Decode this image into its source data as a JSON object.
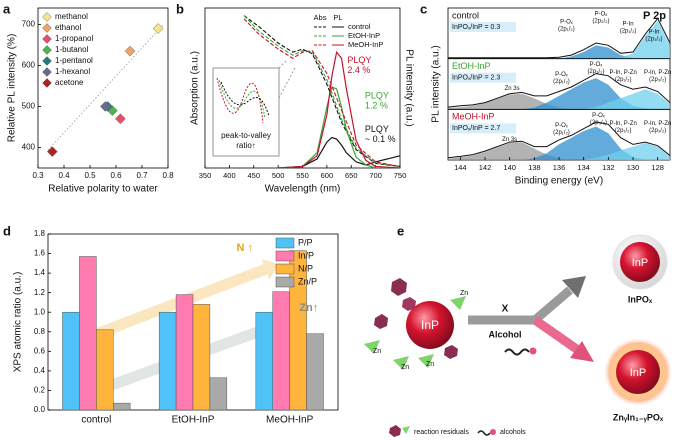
{
  "chart_data": [
    {
      "type": "scatter",
      "panel_label": "a",
      "xlabel": "Relative polarity to water",
      "ylabel": "Relative PL intensity (%)",
      "xlim": [
        0.3,
        0.8
      ],
      "xticks": [
        0.3,
        0.4,
        0.5,
        0.6,
        0.7,
        0.8
      ],
      "ylim": [
        350,
        740
      ],
      "yticks": [
        400,
        500,
        600,
        700
      ],
      "series": [
        {
          "name": "methanol",
          "color": "#f6e48e",
          "x": [
            0.762
          ],
          "values": [
            690
          ]
        },
        {
          "name": "ethanol",
          "color": "#f2a466",
          "x": [
            0.654
          ],
          "values": [
            635
          ]
        },
        {
          "name": "1-propanol",
          "color": "#e2506a",
          "x": [
            0.617
          ],
          "values": [
            470
          ]
        },
        {
          "name": "1-butanol",
          "color": "#4fb34f",
          "x": [
            0.586
          ],
          "values": [
            490
          ]
        },
        {
          "name": "1-pentanol",
          "color": "#1f7f80",
          "x": [
            0.568
          ],
          "values": [
            500
          ]
        },
        {
          "name": "1-hexanol",
          "color": "#6a6a8c",
          "x": [
            0.559
          ],
          "values": [
            500
          ]
        },
        {
          "name": "acetone",
          "color": "#b0231f",
          "x": [
            0.355
          ],
          "values": [
            390
          ]
        }
      ]
    },
    {
      "type": "spectra",
      "panel_label": "b",
      "xlabel": "Wavelength (nm)",
      "ylabel": "Absorption (a.u.)",
      "y2label": "PL intensity (a.u.)",
      "xlim": [
        350,
        750
      ],
      "xticks": [
        350,
        400,
        450,
        500,
        550,
        600,
        650,
        700,
        750
      ],
      "ylim": [
        0,
        1.05
      ],
      "legend_headers": [
        "Abs",
        "PL"
      ],
      "abs_x": [
        430,
        460,
        500,
        530,
        550,
        570,
        600,
        630,
        660,
        700,
        750
      ],
      "pl_x": [
        500,
        550,
        580,
        600,
        610,
        620,
        630,
        640,
        660,
        680,
        700,
        750
      ],
      "series": [
        {
          "name": "control",
          "color": "#111111",
          "abs": [
            1.0,
            0.93,
            0.82,
            0.76,
            0.78,
            0.75,
            0.55,
            0.3,
            0.12,
            0.03,
            0.01
          ],
          "pl": [
            0,
            0.01,
            0.06,
            0.17,
            0.2,
            0.19,
            0.15,
            0.1,
            0.04,
            0.02,
            0.04,
            0.08
          ]
        },
        {
          "name": "EtOH-InP",
          "color": "#3aa635",
          "abs": [
            1.0,
            0.9,
            0.8,
            0.74,
            0.77,
            0.76,
            0.58,
            0.32,
            0.13,
            0.03,
            0.01
          ],
          "pl": [
            0,
            0.01,
            0.1,
            0.4,
            0.53,
            0.52,
            0.4,
            0.25,
            0.07,
            0.02,
            0,
            0
          ]
        },
        {
          "name": "MeOH-InP",
          "color": "#c8102e",
          "abs": [
            0.98,
            0.88,
            0.78,
            0.72,
            0.76,
            0.77,
            0.62,
            0.38,
            0.15,
            0.04,
            0.01
          ],
          "pl": [
            0,
            0.01,
            0.08,
            0.35,
            0.6,
            0.76,
            0.72,
            0.52,
            0.18,
            0.05,
            0.01,
            0
          ]
        }
      ],
      "annotations": [
        {
          "lines": [
            "PLQY",
            "2.4 %"
          ],
          "color": "#c8102e"
        },
        {
          "lines": [
            "PLQY",
            "1.2 %"
          ],
          "color": "#3aa635"
        },
        {
          "lines": [
            "PLQY",
            "~ 0.1 %"
          ],
          "color": "#111111"
        }
      ],
      "inset": [
        "peak-to-valley",
        "ratio↑"
      ]
    },
    {
      "type": "xps",
      "panel_label": "c",
      "title": "P 2p",
      "xlabel": "Binding energy (eV)",
      "ylabel": "PL intensity (a.u.)",
      "xlim": [
        145,
        127
      ],
      "xticks": [
        144,
        142,
        140,
        138,
        136,
        134,
        132,
        130,
        128
      ],
      "ylim": [
        0,
        1
      ],
      "x": [
        145,
        144,
        143,
        142,
        141,
        140,
        139,
        138,
        137,
        136,
        135,
        134,
        133,
        132,
        131,
        130,
        129,
        128,
        127
      ],
      "panels": [
        {
          "label": "control",
          "label_color": "#111111",
          "ratio": "InPOₓ/InP = 0.3",
          "envelope": [
            0.02,
            0.02,
            0.02,
            0.02,
            0.02,
            0.02,
            0.02,
            0.02,
            0.02,
            0.03,
            0.08,
            0.2,
            0.35,
            0.3,
            0.12,
            0.15,
            0.55,
            0.9,
            0.35
          ],
          "components": [
            {
              "color": "#2f8fcf",
              "values": [
                0,
                0,
                0,
                0,
                0,
                0,
                0,
                0,
                0,
                0,
                0.05,
                0.15,
                0.3,
                0.25,
                0.08,
                0.02,
                0,
                0,
                0
              ]
            },
            {
              "color": "#6fd0ee",
              "values": [
                0,
                0,
                0,
                0,
                0,
                0,
                0,
                0,
                0,
                0,
                0,
                0,
                0,
                0,
                0.02,
                0.12,
                0.5,
                0.85,
                0.3
              ]
            }
          ],
          "annotations": [
            [
              "P-Oₓ",
              "(2p₁/₂)"
            ],
            [
              "P-Oₓ",
              "(2p₃/₂)"
            ],
            [
              "P-In",
              "(2p₁/₂)"
            ],
            [
              "P-In",
              "(2p₃/₂)"
            ]
          ]
        },
        {
          "label": "EtOH-InP",
          "label_color": "#3aa635",
          "ratio": "InPOₓ/InP = 2.3",
          "envelope": [
            0.05,
            0.08,
            0.1,
            0.15,
            0.25,
            0.35,
            0.38,
            0.3,
            0.3,
            0.4,
            0.5,
            0.65,
            0.8,
            0.75,
            0.55,
            0.45,
            0.5,
            0.4,
            0.15
          ],
          "components": [
            {
              "color": "#9a9a9a",
              "values": [
                0.03,
                0.05,
                0.08,
                0.14,
                0.24,
                0.33,
                0.35,
                0.25,
                0.12,
                0.04,
                0,
                0,
                0,
                0,
                0,
                0,
                0,
                0,
                0
              ]
            },
            {
              "color": "#2f8fcf",
              "values": [
                0,
                0,
                0,
                0,
                0,
                0,
                0,
                0.04,
                0.15,
                0.3,
                0.45,
                0.6,
                0.7,
                0.55,
                0.25,
                0.08,
                0.02,
                0,
                0
              ]
            },
            {
              "color": "#6fd0ee",
              "values": [
                0,
                0,
                0,
                0,
                0,
                0,
                0,
                0,
                0,
                0,
                0,
                0,
                0.05,
                0.15,
                0.25,
                0.35,
                0.45,
                0.35,
                0.12
              ]
            }
          ],
          "annotations": [
            [
              "Zn 3s"
            ],
            [
              "P-Oₓ",
              "(2p₁/₂)"
            ],
            [
              "P-Oₓ",
              "(2p₃/₂)"
            ],
            [
              "P-In, P-Zn",
              "(2p₁/₂)"
            ],
            [
              "P-In, P-Zn",
              "(2p₃/₂)"
            ]
          ]
        },
        {
          "label": "MeOH-InP",
          "label_color": "#c8102e",
          "ratio": "InPOₓ/InP = 2.7",
          "envelope": [
            0.05,
            0.08,
            0.12,
            0.2,
            0.3,
            0.4,
            0.42,
            0.3,
            0.3,
            0.45,
            0.55,
            0.7,
            0.85,
            0.8,
            0.5,
            0.35,
            0.4,
            0.32,
            0.1
          ],
          "components": [
            {
              "color": "#9a9a9a",
              "values": [
                0.03,
                0.06,
                0.1,
                0.18,
                0.28,
                0.38,
                0.4,
                0.25,
                0.12,
                0.04,
                0,
                0,
                0,
                0,
                0,
                0,
                0,
                0,
                0
              ]
            },
            {
              "color": "#2f8fcf",
              "values": [
                0,
                0,
                0,
                0,
                0,
                0,
                0,
                0.04,
                0.15,
                0.35,
                0.5,
                0.65,
                0.75,
                0.6,
                0.25,
                0.06,
                0.01,
                0,
                0
              ]
            },
            {
              "color": "#6fd0ee",
              "values": [
                0,
                0,
                0,
                0,
                0,
                0,
                0,
                0,
                0,
                0,
                0,
                0,
                0.05,
                0.12,
                0.22,
                0.3,
                0.38,
                0.3,
                0.08
              ]
            }
          ],
          "annotations": [
            [
              "Zn 3s"
            ],
            [
              "P-Oₓ",
              "(2p₁/₂)"
            ],
            [
              "P-Oₓ",
              "(2p₃/₂)"
            ],
            [
              "P-In, P-Zn",
              "(2p₁/₂)"
            ],
            [
              "P-In, P-Zn",
              "(2p₃/₂)"
            ]
          ]
        }
      ]
    },
    {
      "type": "bar",
      "panel_label": "d",
      "ylabel": "XPS atomic ratio (a.u.)",
      "categories": [
        "control",
        "EtOH-InP",
        "MeOH-InP"
      ],
      "ylim": [
        0,
        1.8
      ],
      "yticks": [
        {
          "value": 0,
          "label": "0.0"
        },
        0.2,
        0.4,
        0.6,
        0.8,
        {
          "value": 1,
          "label": "1.0"
        },
        1.2,
        1.4,
        1.6,
        1.8
      ],
      "series": [
        {
          "name": "P/P",
          "color": "#4fc3f7",
          "values": [
            1,
            1,
            1
          ]
        },
        {
          "name": "In/P",
          "color": "#ff7bb0",
          "values": [
            1.57,
            1.18,
            1.21
          ]
        },
        {
          "name": "N/P",
          "color": "#ffb53d",
          "values": [
            0.82,
            1.08,
            1.63
          ]
        },
        {
          "name": "Zn/P",
          "color": "#a9a9a9",
          "values": [
            0.07,
            0.33,
            0.78
          ]
        }
      ],
      "annotations": [
        {
          "text": "N ↑",
          "color": "#e8a317"
        },
        {
          "text": "Zn↑",
          "color": "#8a8a8a"
        }
      ]
    }
  ],
  "diagram": {
    "panel_label": "e",
    "inp_core": "InP",
    "zn_labels": [
      "Zn",
      "Zn",
      "Zn",
      "Zn"
    ],
    "arrow_top": "X",
    "arrow_bottom": "Alcohol",
    "product_1_core": "InP",
    "product_1": "InPOₓ",
    "product_2_core": "InP",
    "product_2": "ZnᵧIn₁₋ᵧPOₓ",
    "legend": [
      "reaction residuals",
      "alcohols"
    ]
  }
}
